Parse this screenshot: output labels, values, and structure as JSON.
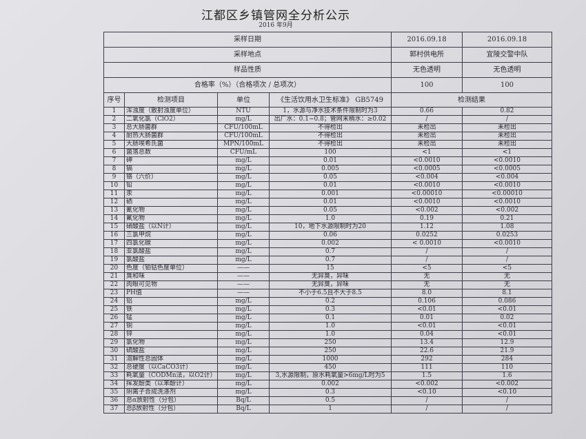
{
  "title": "江都区乡镇管网全分析公示",
  "subtitle": "2016 年9月",
  "meta": [
    {
      "label": "采样日期",
      "v1": "2016.09.18",
      "v2": "2016.09.18"
    },
    {
      "label": "采样地点",
      "v1": "郭村供电所",
      "v2": "宜陵交警中队"
    },
    {
      "label": "样品性质",
      "v1": "无色透明",
      "v2": "无色透明"
    },
    {
      "label": "合格率（%）（合格项次 / 总项次）",
      "v1": "100",
      "v2": "100"
    }
  ],
  "header": {
    "seq": "序号",
    "item": "检测项目",
    "unit": "单位",
    "standard": "《生活饮用水卫生标准》 GB5749",
    "result": "检测结果"
  },
  "rows": [
    [
      "1",
      "浑浊度（散射浊度单位）",
      "NTU",
      "1，水源与净水技术条件限制时为3",
      "0.66",
      "0.82"
    ],
    [
      "2",
      "二氧化氯（ClO2）",
      "mg/L",
      "出厂水：0.1~0.8；管网末梢水：≥0.02",
      "/",
      "/"
    ],
    [
      "3",
      "总大肠菌群",
      "CFU/100mL",
      "不得检出",
      "未检出",
      "未检出"
    ],
    [
      "4",
      "耐热大肠菌群",
      "CFU/100mL",
      "不得检出",
      "未检出",
      "未检出"
    ],
    [
      "5",
      "大肠埃希氏菌",
      "MPN/100mL",
      "不得检出",
      "未检出",
      "未检出"
    ],
    [
      "6",
      "菌落总数",
      "CFU/mL",
      "100",
      "<1",
      "<1"
    ],
    [
      "7",
      "砷",
      "mg/L",
      "0.01",
      "<0.0010",
      "<0.0010"
    ],
    [
      "8",
      "镉",
      "mg/L",
      "0.005",
      "<0.0005",
      "<0.0005"
    ],
    [
      "9",
      "铬（六价）",
      "mg/L",
      "0.05",
      "<0.004",
      "<0.004"
    ],
    [
      "10",
      "铅",
      "mg/L",
      "0.01",
      "<0.0010",
      "<0.0010"
    ],
    [
      "11",
      "汞",
      "mg/L",
      "0.001",
      "<0.00010",
      "<0.00010"
    ],
    [
      "12",
      "硒",
      "mg/L",
      "0.01",
      "<0.0010",
      "<0.0010"
    ],
    [
      "13",
      "氰化物",
      "mg/L",
      "0.05",
      "<0.002",
      "<0.002"
    ],
    [
      "14",
      "氟化物",
      "mg/L",
      "1.0",
      "0.19",
      "0.21"
    ],
    [
      "15",
      "硝酸盐（以N计）",
      "mg/L",
      "10，地下水源限制时为20",
      "1.12",
      "1.08"
    ],
    [
      "16",
      "三氯甲烷",
      "mg/L",
      "0.06",
      "0.0252",
      "0.0253"
    ],
    [
      "17",
      "四氯化碳",
      "mg/L",
      "0.002",
      "< 0.0010",
      "<0.0010"
    ],
    [
      "18",
      "亚氯酸盐",
      "mg/L",
      "0.7",
      "/",
      "/"
    ],
    [
      "19",
      "氯酸盐",
      "mg/L",
      "0.7",
      "/",
      "/"
    ],
    [
      "20",
      "色度（铂钴色度单位）",
      "——",
      "15",
      "<5",
      "<5"
    ],
    [
      "21",
      "臭和味",
      "——",
      "无异臭，异味",
      "无",
      "无"
    ],
    [
      "22",
      "肉眼可见物",
      "——",
      "无异臭，异味",
      "无",
      "无"
    ],
    [
      "23",
      "PH值",
      "——",
      "不小于6.5且不大于8.5",
      "8.0",
      "8.1"
    ],
    [
      "24",
      "铝",
      "mg/L",
      "0.2",
      "0.106",
      "0.086"
    ],
    [
      "25",
      "铁",
      "mg/L",
      "0.3",
      "<0.01",
      "<0.01"
    ],
    [
      "26",
      "锰",
      "mg/L",
      "0.1",
      "0.01",
      "0.02"
    ],
    [
      "27",
      "铜",
      "mg/L",
      "1.0",
      "<0.01",
      "<0.01"
    ],
    [
      "28",
      "锌",
      "mg/L",
      "1.0",
      "0.04",
      "<0.01"
    ],
    [
      "29",
      "氯化物",
      "mg/L",
      "250",
      "13.4",
      "12.9"
    ],
    [
      "30",
      "硫酸盐",
      "mg/L",
      "250",
      "22.6",
      "21.9"
    ],
    [
      "31",
      "溶解性总固体",
      "mg/L",
      "1000",
      "292",
      "284"
    ],
    [
      "32",
      "总硬度（以CaCO3计）",
      "mg/L",
      "450",
      "111",
      "110"
    ],
    [
      "33",
      "耗氧量（CODMn法，以O2计）",
      "mg/L",
      "3,水源限制，原水耗氧量>6mg/L时为5",
      "1.5",
      "1.6"
    ],
    [
      "34",
      "挥发酚类（以苯酚计）",
      "mg/L",
      "0.002",
      "<0.002",
      "<0.002"
    ],
    [
      "35",
      "阴离子合成洗涤剂",
      "mg/L",
      "0.3",
      "<0.10",
      "<0.10"
    ],
    [
      "36",
      "总α放射性（分包）",
      "Bq/L",
      "0.5",
      "/",
      "/"
    ],
    [
      "37",
      "总β放射性（分包）",
      "Bq/L",
      "1",
      "/",
      "/"
    ]
  ]
}
